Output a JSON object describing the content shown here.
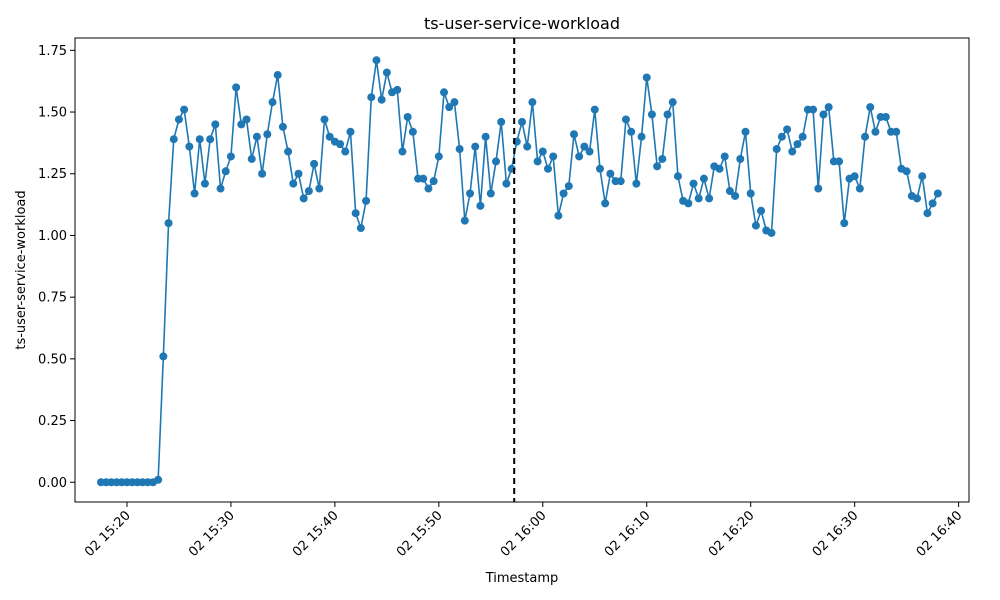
{
  "chart_data": {
    "type": "line",
    "title": "ts-user-service-workload",
    "xlabel": "Timestamp",
    "ylabel": "ts-user-service-workload",
    "x_start": "02 15:17:30",
    "x_step_seconds": 30,
    "xlim": [
      "02 15:15:00",
      "02 16:41:00"
    ],
    "ylim": [
      -0.08,
      1.8
    ],
    "x_ticks": [
      "02 15:20",
      "02 15:30",
      "02 15:40",
      "02 15:50",
      "02 16:00",
      "02 16:10",
      "02 16:20",
      "02 16:30",
      "02 16:40"
    ],
    "y_ticks": [
      "0.00",
      "0.25",
      "0.50",
      "0.75",
      "1.00",
      "1.25",
      "1.50",
      "1.75"
    ],
    "grid": false,
    "marker": "circle",
    "color": "#1f77b4",
    "vertical_marker": {
      "x": "02 15:57:15",
      "style": "dashed",
      "color": "#000000"
    },
    "values": [
      0.0,
      0.0,
      0.0,
      0.0,
      0.0,
      0.0,
      0.0,
      0.0,
      0.0,
      0.0,
      0.0,
      0.01,
      0.51,
      1.05,
      1.39,
      1.47,
      1.51,
      1.36,
      1.17,
      1.39,
      1.21,
      1.39,
      1.45,
      1.19,
      1.26,
      1.32,
      1.6,
      1.45,
      1.47,
      1.31,
      1.4,
      1.25,
      1.41,
      1.54,
      1.65,
      1.44,
      1.34,
      1.21,
      1.25,
      1.15,
      1.18,
      1.29,
      1.19,
      1.47,
      1.4,
      1.38,
      1.37,
      1.34,
      1.42,
      1.09,
      1.03,
      1.14,
      1.56,
      1.71,
      1.55,
      1.66,
      1.58,
      1.59,
      1.34,
      1.48,
      1.42,
      1.23,
      1.23,
      1.19,
      1.22,
      1.32,
      1.58,
      1.52,
      1.54,
      1.35,
      1.06,
      1.17,
      1.36,
      1.12,
      1.4,
      1.17,
      1.3,
      1.46,
      1.21,
      1.27,
      1.38,
      1.46,
      1.36,
      1.54,
      1.3,
      1.34,
      1.27,
      1.32,
      1.08,
      1.17,
      1.2,
      1.41,
      1.32,
      1.36,
      1.34,
      1.51,
      1.27,
      1.13,
      1.25,
      1.22,
      1.22,
      1.47,
      1.42,
      1.21,
      1.4,
      1.64,
      1.49,
      1.28,
      1.31,
      1.49,
      1.54,
      1.24,
      1.14,
      1.13,
      1.21,
      1.15,
      1.23,
      1.15,
      1.28,
      1.27,
      1.32,
      1.18,
      1.16,
      1.31,
      1.42,
      1.17,
      1.04,
      1.1,
      1.02,
      1.01,
      1.35,
      1.4,
      1.43,
      1.34,
      1.37,
      1.4,
      1.51,
      1.51,
      1.19,
      1.49,
      1.52,
      1.3,
      1.3,
      1.05,
      1.23,
      1.24,
      1.19,
      1.4,
      1.52,
      1.42,
      1.48,
      1.48,
      1.42,
      1.42,
      1.27,
      1.26,
      1.16,
      1.15,
      1.24,
      1.09,
      1.13,
      1.17
    ]
  }
}
